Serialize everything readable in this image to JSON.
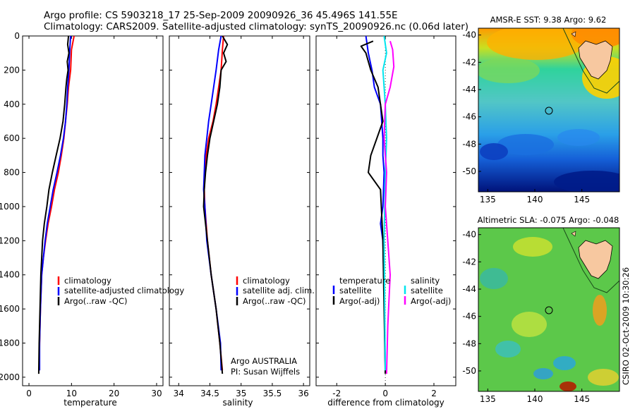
{
  "figure": {
    "title_line1": "Argo profile: CS 5903218_17 25-Sep-2009 20090926_36 45.496S 141.55E",
    "title_line2": "Climatology: CARS2009. Satellite-adjusted climatology: synTS_20090926.nc (0.06d later)",
    "float_info_line1": "Argo AUSTRALIA",
    "float_info_line2": "PI: Susan Wijffels",
    "timestamp": "CSIRO 02-Oct-2009 10:30:26"
  },
  "colors": {
    "climatology": "#ff0000",
    "satellite": "#0000ff",
    "argo": "#000000",
    "sat_salinity": "#00e5ee",
    "argo_salinity": "#ff00ff",
    "land": "#f7c8a0"
  },
  "chart_data": [
    {
      "type": "line",
      "name": "temperature-panel",
      "xlabel": "temperature",
      "xlim": [
        -1.5,
        31.5
      ],
      "ylim": [
        0,
        2050
      ],
      "xticks": [
        "0",
        "10",
        "20",
        "30"
      ],
      "xtick_values": [
        0,
        10,
        20,
        30
      ],
      "yticks": [
        "0",
        "200",
        "400",
        "600",
        "800",
        "1000",
        "1200",
        "1400",
        "1600",
        "1800",
        "2000"
      ],
      "ytick_values": [
        0,
        200,
        400,
        600,
        800,
        1000,
        1200,
        1400,
        1600,
        1800,
        2000
      ],
      "legend": [
        "climatology",
        "satellite-adjusted climatology",
        "Argo(..raw -QC)"
      ],
      "series": [
        {
          "name": "climatology",
          "x": [
            10.6,
            10.0,
            9.8,
            9.3,
            9.0,
            8.6,
            8.2,
            7.6,
            6.9,
            6.0,
            5.3,
            4.5,
            3.9,
            3.4,
            3.0,
            2.7,
            2.5,
            2.4
          ],
          "y": [
            0,
            80,
            200,
            300,
            400,
            500,
            600,
            700,
            800,
            900,
            1000,
            1100,
            1200,
            1300,
            1400,
            1600,
            1800,
            1960
          ]
        },
        {
          "name": "satellite",
          "x": [
            9.8,
            9.6,
            9.4,
            9.1,
            8.9,
            8.6,
            8.1,
            7.4,
            6.6,
            5.7,
            5.0,
            4.3,
            3.8,
            3.4,
            3.0,
            2.7,
            2.5,
            2.5
          ],
          "y": [
            0,
            80,
            200,
            300,
            400,
            500,
            600,
            700,
            800,
            900,
            1000,
            1100,
            1200,
            1300,
            1400,
            1600,
            1800,
            1960
          ]
        },
        {
          "name": "argo",
          "x": [
            9.3,
            9.1,
            9.4,
            9.0,
            9.2,
            8.9,
            8.7,
            8.4,
            8.0,
            7.3,
            6.4,
            5.5,
            4.7,
            4.2,
            3.6,
            3.2,
            2.8,
            2.6,
            2.4,
            2.3
          ],
          "y": [
            0,
            50,
            100,
            150,
            200,
            250,
            300,
            400,
            500,
            600,
            700,
            800,
            900,
            1000,
            1100,
            1200,
            1400,
            1600,
            1800,
            1980
          ]
        }
      ]
    },
    {
      "type": "line",
      "name": "salinity-panel",
      "xlabel": "salinity",
      "xlim": [
        33.85,
        36.1
      ],
      "ylim": [
        0,
        2050
      ],
      "xticks": [
        "34",
        "34.5",
        "35",
        "35.5",
        "36"
      ],
      "xtick_values": [
        34,
        34.5,
        35,
        35.5,
        36
      ],
      "legend": [
        "climatology",
        "satellite adj. clim.",
        "Argo(..raw -QC)"
      ],
      "series": [
        {
          "name": "climatology",
          "x": [
            34.72,
            34.7,
            34.68,
            34.64,
            34.6,
            34.55,
            34.48,
            34.44,
            34.42,
            34.41,
            34.42,
            34.46,
            34.52,
            34.6,
            34.66,
            34.7
          ],
          "y": [
            0,
            80,
            200,
            300,
            400,
            500,
            600,
            700,
            800,
            900,
            1000,
            1200,
            1400,
            1600,
            1800,
            1960
          ]
        },
        {
          "name": "satellite",
          "x": [
            34.68,
            34.64,
            34.6,
            34.56,
            34.52,
            34.48,
            34.45,
            34.42,
            34.41,
            34.4,
            34.42,
            34.45,
            34.52,
            34.6,
            34.67,
            34.68
          ],
          "y": [
            0,
            80,
            200,
            300,
            400,
            500,
            600,
            700,
            800,
            900,
            1000,
            1200,
            1400,
            1600,
            1800,
            1960
          ]
        },
        {
          "name": "argo",
          "x": [
            34.7,
            34.78,
            34.72,
            34.76,
            34.68,
            34.66,
            34.62,
            34.56,
            34.5,
            34.46,
            34.43,
            34.41,
            34.4,
            34.43,
            34.46,
            34.52,
            34.6,
            34.66,
            34.7
          ],
          "y": [
            0,
            50,
            100,
            150,
            200,
            300,
            400,
            500,
            600,
            700,
            800,
            900,
            1000,
            1100,
            1200,
            1400,
            1600,
            1800,
            1980
          ]
        }
      ]
    },
    {
      "type": "line",
      "name": "difference-panel",
      "xlabel": "difference from climatology",
      "xlim": [
        -2.85,
        2.9
      ],
      "ylim": [
        0,
        2050
      ],
      "xticks": [
        "-2",
        "0",
        "2"
      ],
      "xtick_values": [
        -2,
        0,
        2
      ],
      "legend_headers": [
        "temperature",
        "salinity"
      ],
      "legend": [
        "satellite",
        "Argo(-adj)",
        "satellite",
        "Argo(-adj)"
      ],
      "series": [
        {
          "name": "temperature satellite",
          "x": [
            -0.8,
            -0.7,
            -0.55,
            -0.45,
            -0.2,
            -0.15,
            -0.1,
            -0.1,
            -0.05,
            -0.1,
            -0.2,
            -0.1,
            -0.05,
            0.0
          ],
          "y": [
            0,
            100,
            200,
            300,
            400,
            500,
            600,
            700,
            800,
            1000,
            1100,
            1200,
            1500,
            1960
          ]
        },
        {
          "name": "temperature argo",
          "x": [
            -0.5,
            -1.0,
            -0.8,
            -0.6,
            -0.3,
            -0.1,
            -0.6,
            -0.7,
            -0.2,
            -0.1,
            -0.05,
            0.0
          ],
          "y": [
            30,
            60,
            100,
            200,
            300,
            500,
            700,
            800,
            900,
            1200,
            1600,
            1980
          ]
        },
        {
          "name": "salinity satellite",
          "x": [
            -0.05,
            0.05,
            -0.1,
            0.0,
            0.05,
            0.0,
            -0.05,
            0.0
          ],
          "y": [
            0,
            100,
            200,
            400,
            600,
            800,
            1200,
            1960
          ]
        },
        {
          "name": "salinity argo",
          "x": [
            0.2,
            0.3,
            0.35,
            0.2,
            0.0,
            -0.05,
            0.05,
            0.0,
            0.1,
            0.2,
            0.1,
            0.05
          ],
          "y": [
            30,
            80,
            180,
            300,
            400,
            600,
            800,
            1000,
            1200,
            1400,
            1700,
            1980
          ]
        }
      ]
    },
    {
      "type": "heatmap",
      "name": "sst-map",
      "title": "AMSR-E SST: 9.38 Argo: 9.62",
      "xlim": [
        134,
        149
      ],
      "ylim": [
        -51.5,
        -39.5
      ],
      "xticks": [
        "135",
        "140",
        "145"
      ],
      "xtick_values": [
        135,
        140,
        145
      ],
      "yticks": [
        "-40",
        "-42",
        "-44",
        "-46",
        "-48",
        "-50"
      ],
      "ytick_values": [
        -40,
        -42,
        -44,
        -46,
        -48,
        -50
      ],
      "marker": [
        141.55,
        -45.5
      ]
    },
    {
      "type": "heatmap",
      "name": "sla-map",
      "title": "Altimetric SLA: -0.075 Argo: -0.048",
      "xlim": [
        134,
        149
      ],
      "ylim": [
        -51.5,
        -39.5
      ],
      "xticks": [
        "135",
        "140",
        "145"
      ],
      "xtick_values": [
        135,
        140,
        145
      ],
      "yticks": [
        "-40",
        "-42",
        "-44",
        "-46",
        "-48",
        "-50"
      ],
      "ytick_values": [
        -40,
        -42,
        -44,
        -46,
        -48,
        -50
      ],
      "marker": [
        141.55,
        -45.5
      ]
    }
  ]
}
